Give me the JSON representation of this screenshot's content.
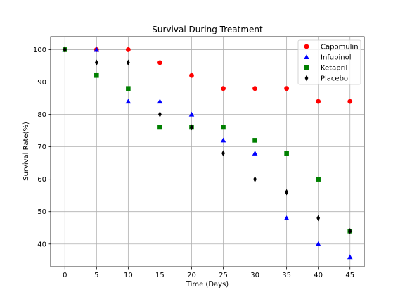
{
  "chart_data": {
    "type": "scatter",
    "title": "Survival During Treatment",
    "xlabel": "Time (Days)",
    "ylabel": "Survival Rate(%)",
    "xlim": [
      -2.25,
      47.25
    ],
    "ylim": [
      33,
      104
    ],
    "xticks": [
      0,
      5,
      10,
      15,
      20,
      25,
      30,
      35,
      40,
      45
    ],
    "yticks": [
      40,
      50,
      60,
      70,
      80,
      90,
      100
    ],
    "grid": true,
    "legend_position": "top-right",
    "x": [
      0,
      5,
      10,
      15,
      20,
      25,
      30,
      35,
      40,
      45
    ],
    "series": [
      {
        "name": "Capomulin",
        "marker": "circle",
        "color": "#ff0000",
        "values": [
          100,
          100,
          100,
          96,
          92,
          88,
          88,
          88,
          84,
          84
        ]
      },
      {
        "name": "Infubinol",
        "marker": "triangle",
        "color": "#0000ff",
        "values": [
          100,
          100,
          84,
          84,
          80,
          72,
          68,
          48,
          40,
          36
        ]
      },
      {
        "name": "Ketapril",
        "marker": "square",
        "color": "#008000",
        "values": [
          100,
          92,
          88,
          76,
          76,
          76,
          72,
          68,
          60,
          44
        ]
      },
      {
        "name": "Placebo",
        "marker": "thin_diamond",
        "color": "#000000",
        "values": [
          100,
          96,
          96,
          80,
          76,
          68,
          60,
          56,
          48,
          44
        ]
      }
    ]
  }
}
